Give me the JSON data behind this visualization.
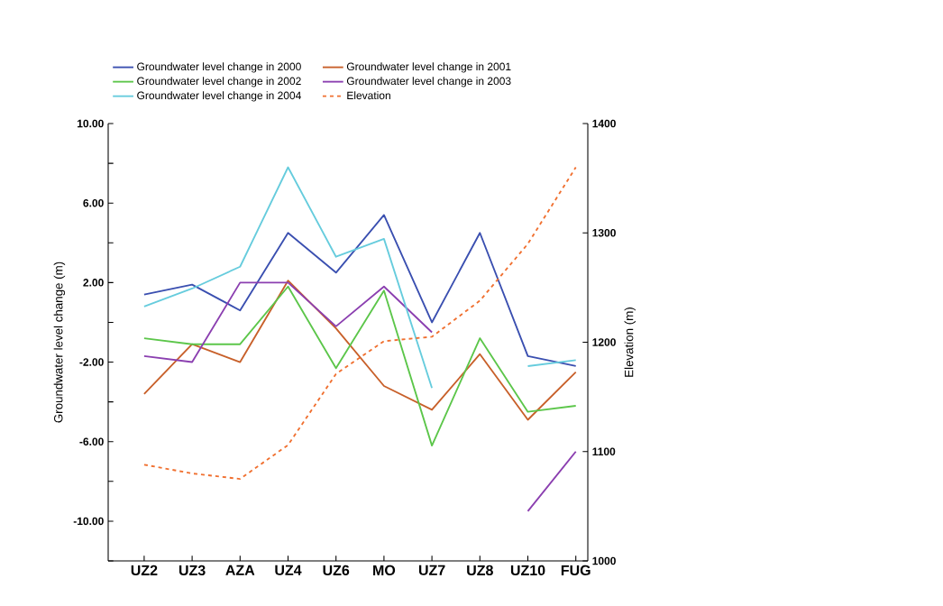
{
  "chart_data": {
    "type": "line",
    "ylabel": "Groundwater level change (m)",
    "y2label": "Elevation (m)",
    "categories": [
      "UZ2",
      "UZ3",
      "AZA",
      "UZ4",
      "UZ6",
      "MO",
      "UZ7",
      "UZ8",
      "UZ10",
      "FUG"
    ],
    "series": [
      {
        "name": "Groundwater level change in 2000",
        "color": "#3a4fb0",
        "values": [
          1.4,
          1.9,
          0.6,
          4.5,
          2.5,
          5.4,
          0.0,
          4.5,
          -1.7,
          -2.2
        ]
      },
      {
        "name": "Groundwater level change in 2001",
        "color": "#c8602a",
        "values": [
          -3.6,
          -1.1,
          -2.0,
          2.1,
          -0.3,
          -3.2,
          -4.4,
          -1.6,
          -4.9,
          -2.5
        ]
      },
      {
        "name": "Groundwater level change in 2002",
        "color": "#5cc64a",
        "values": [
          -0.8,
          -1.1,
          -1.1,
          1.8,
          -2.3,
          1.6,
          -6.2,
          -0.8,
          -4.5,
          -4.2
        ]
      },
      {
        "name": "Groundwater level change in 2003",
        "color": "#8b3fb0",
        "values": [
          -1.7,
          -2.0,
          2.0,
          2.0,
          -0.2,
          1.8,
          -0.5,
          null,
          -9.5,
          -6.5
        ]
      },
      {
        "name": "Groundwater level change in 2004",
        "color": "#66ccdd",
        "values": [
          0.8,
          1.7,
          2.8,
          7.8,
          3.3,
          4.2,
          -3.3,
          null,
          -2.2,
          -1.9
        ]
      },
      {
        "name": "Elevation",
        "color": "#f07030",
        "values": [
          1088,
          1080,
          1075,
          1106,
          1171,
          1201,
          1205,
          1238,
          1290,
          1360
        ],
        "axis": "y2",
        "line_style": "dashed"
      }
    ],
    "ylim": [
      -12,
      10
    ],
    "yticks": [
      {
        "value": -12,
        "label": null
      },
      {
        "value": -10,
        "label": "-10.00"
      },
      {
        "value": -8,
        "label": null
      },
      {
        "value": -6,
        "label": "-6.00"
      },
      {
        "value": -4,
        "label": null
      },
      {
        "value": -2,
        "label": "-2.00"
      },
      {
        "value": 0,
        "label": null
      },
      {
        "value": 2,
        "label": "2.00"
      },
      {
        "value": 4,
        "label": null
      },
      {
        "value": 6,
        "label": "6.00"
      },
      {
        "value": 8,
        "label": null
      },
      {
        "value": 10,
        "label": "10.00"
      }
    ],
    "y2lim": [
      1000,
      1400
    ],
    "y2ticks": [
      1000,
      1100,
      1200,
      1300,
      1400
    ],
    "legend": "top",
    "marker": "none",
    "grid": false
  }
}
